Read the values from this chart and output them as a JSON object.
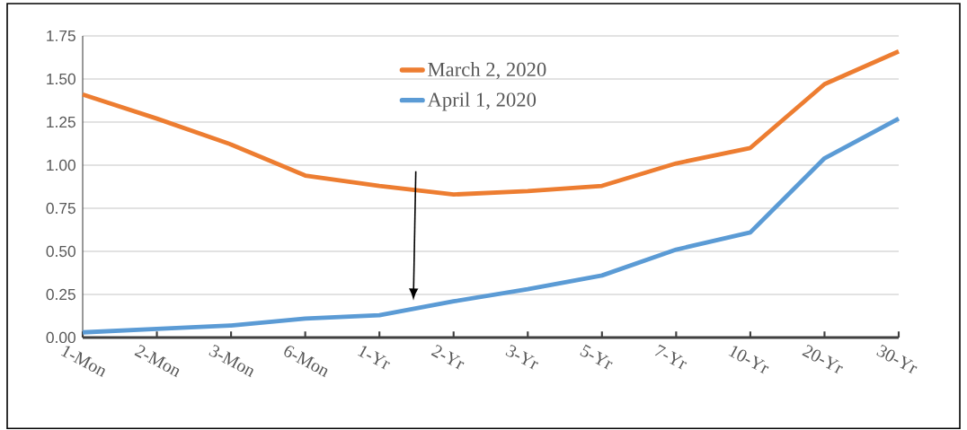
{
  "chart_data": {
    "type": "line",
    "categories": [
      "1-Mon",
      "2-Mon",
      "3-Mon",
      "6-Mon",
      "1-Yr",
      "2-Yr",
      "3-Yr",
      "5-Yr",
      "7-Yr",
      "10-Yr",
      "20-Yr",
      "30-Yr"
    ],
    "series": [
      {
        "name": "March 2, 2020",
        "color": "#ed7d31",
        "values": [
          1.41,
          1.27,
          1.12,
          0.94,
          0.88,
          0.83,
          0.85,
          0.88,
          1.01,
          1.1,
          1.47,
          1.66
        ]
      },
      {
        "name": "April 1, 2020",
        "color": "#5b9bd5",
        "values": [
          0.03,
          0.05,
          0.07,
          0.11,
          0.13,
          0.21,
          0.28,
          0.36,
          0.51,
          0.61,
          1.04,
          1.27
        ]
      }
    ],
    "ylim": [
      0,
      1.75
    ],
    "yticks": [
      {
        "value": 0,
        "label": "0.00"
      },
      {
        "value": 0.25,
        "label": "0.25"
      },
      {
        "value": 0.5,
        "label": "0.50"
      },
      {
        "value": 0.75,
        "label": "0.75"
      },
      {
        "value": 1,
        "label": "1.00"
      },
      {
        "value": 1.25,
        "label": "1.25"
      },
      {
        "value": 1.5,
        "label": "1.50"
      },
      {
        "value": 1.75,
        "label": "1.75"
      }
    ],
    "grid": "y",
    "legend": "top",
    "marker": "none",
    "line_style": "solid"
  }
}
